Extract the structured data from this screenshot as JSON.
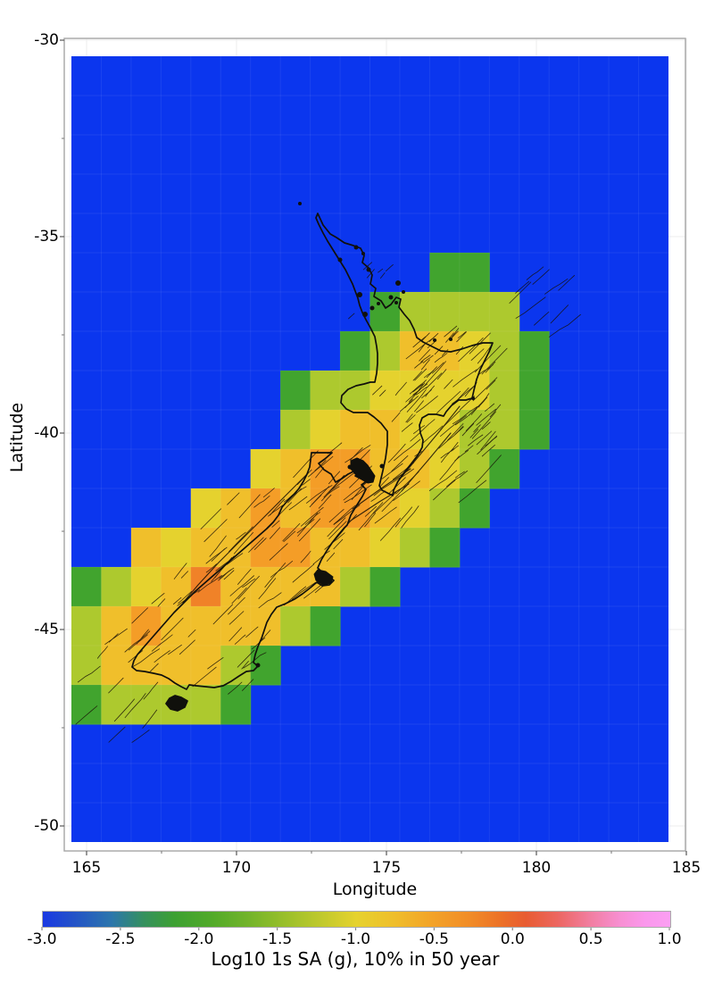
{
  "figure": {
    "xlabel": "Longitude",
    "ylabel": "Latitude",
    "x_ticks": [
      "165",
      "170",
      "175",
      "180",
      "185"
    ],
    "y_ticks": [
      "-30",
      "-35",
      "-40",
      "-45",
      "-50"
    ],
    "colorbar": {
      "title": "Log10 1s SA (g), 10% in 50 year",
      "ticks": [
        "-3.0",
        "-2.5",
        "-2.0",
        "-1.5",
        "-1.0",
        "-0.5",
        "0.0",
        "0.5",
        "1.0"
      ]
    }
  },
  "chart_data": {
    "type": "heatmap",
    "title": "Log10 1s SA (g), 10% in 50 year",
    "xlabel": "Longitude",
    "ylabel": "Latitude",
    "x_range": [
      164.5,
      184.5
    ],
    "y_range": [
      -50.4,
      -30.4
    ],
    "cell_size_deg": 1.0,
    "legend_position": "bottom",
    "grid_rows_north_to_south": [
      "BBBBBBBBBBBBBBBBBBBB",
      "BBBBBBBBBBBBBBBBBBBB",
      "BBBBBBBBBBBBBBBBBBBB",
      "BBBBBBBBBBBBBBBBBBBB",
      "BBBBBBBBBBBBBBBBBBBB",
      "BBBBBBBBBBBBGGBBBBBB",
      "BBBBBBBBBBGggggBBBBB",
      "BBBBBBBBBGgDDYgGBBBB",
      "BBBBBBBGggYYYYgGBBBB",
      "BBBBBBBgYDDYYggGBBBB",
      "BBBBBBYDOODDYgGBBBBB",
      "BBBBYDODOODYgGBBBBBB",
      "BBDYDDOODDYgGBBBBBBB",
      "GgYDRDDDDgGBBBBBBBBB",
      "gDODDDDgGBBBBBBBBBBB",
      "gDDDDgGBBBBBBBBBBBBB",
      "GggggGBBBBBBBBBBBBBB",
      "BBBBBBBBBBBBBBBBBBBB",
      "BBBBBBBBBBBBBBBBBBBB",
      "BBBBBBBBBBBBBBBBBBBB"
    ],
    "palette": {
      "B": "#0b36ee",
      "G": "#41a42e",
      "g": "#adc92e",
      "Y": "#e5d22e",
      "D": "#f0bf2b",
      "O": "#f49d27",
      "R": "#f08228"
    },
    "palette_values_log10_sa_g": {
      "B": -3.0,
      "G": -2.0,
      "g": -1.5,
      "Y": -1.05,
      "D": -0.85,
      "O": -0.6,
      "R": -0.45
    },
    "colorbar_range": [
      -3.0,
      1.0
    ],
    "overlay": "New Zealand coastline and active fault traces drawn in black"
  }
}
